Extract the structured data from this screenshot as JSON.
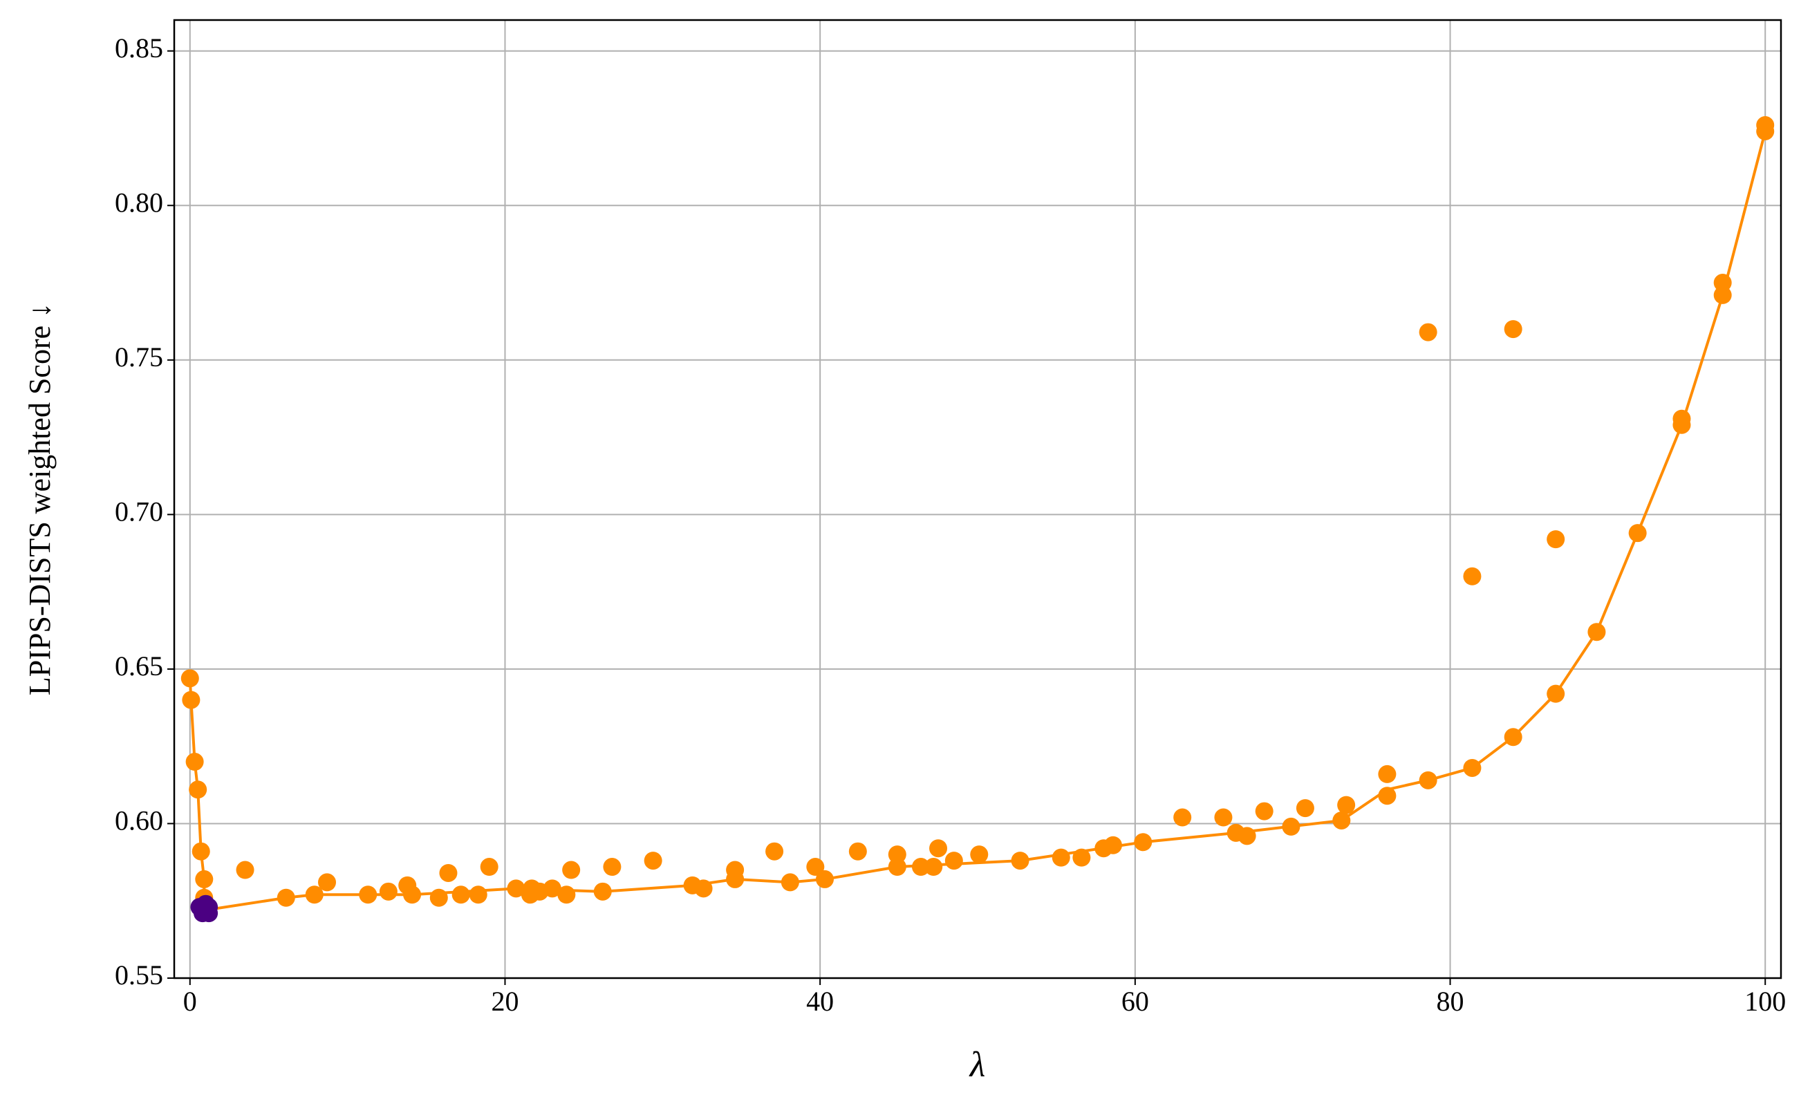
{
  "chart_data": {
    "type": "scatter",
    "xlabel": "λ",
    "ylabel": "LPIPS-DISTS weighted Score ↓",
    "xlim": [
      -1,
      101
    ],
    "ylim": [
      0.55,
      0.86
    ],
    "xticks": [
      0,
      20,
      40,
      60,
      80,
      100
    ],
    "yticks": [
      0.55,
      {
        "value": 0.6,
        "label": "0.60"
      },
      0.65,
      {
        "value": 0.7,
        "label": "0.70"
      },
      0.75,
      {
        "value": 0.8,
        "label": "0.80"
      },
      0.85
    ],
    "grid": true,
    "series": [
      {
        "type": "line",
        "color": "#ff8c00",
        "x": [
          0,
          0.07,
          0.3,
          0.5,
          0.7,
          0.9,
          0.9,
          1.0,
          6.1,
          7.9,
          11.3,
          14.1,
          20.7,
          26.2,
          31.9,
          34.6,
          38.1,
          40.3,
          44.9,
          52.7,
          60.5,
          66.4,
          73.1,
          76.0,
          78.6,
          81.4,
          84.0,
          86.7,
          89.3,
          91.9,
          94.7,
          97.3,
          100
        ],
        "values": [
          0.647,
          0.64,
          0.62,
          0.611,
          0.591,
          0.582,
          0.576,
          0.572,
          0.576,
          0.577,
          0.577,
          0.577,
          0.579,
          0.578,
          0.58,
          0.582,
          0.581,
          0.582,
          0.586,
          0.588,
          0.594,
          0.597,
          0.601,
          0.611,
          0.614,
          0.618,
          0.628,
          0.642,
          0.662,
          0.694,
          0.729,
          0.771,
          0.824
        ]
      },
      {
        "type": "scatter",
        "color": "#ff8c00",
        "x": [
          0,
          0.07,
          0.3,
          0.5,
          0.7,
          0.9,
          0.9,
          3.5,
          6.1,
          7.9,
          8.7,
          11.3,
          12.6,
          13.8,
          14.1,
          15.8,
          16.4,
          17.2,
          18.3,
          19.0,
          20.7,
          21.6,
          21.7,
          22.2,
          23.0,
          23.9,
          24.2,
          26.2,
          26.8,
          29.4,
          31.9,
          32.6,
          34.6,
          34.6,
          37.1,
          38.1,
          39.7,
          40.3,
          42.4,
          44.9,
          44.9,
          46.4,
          47.2,
          47.5,
          48.5,
          50.1,
          52.7,
          55.3,
          56.6,
          58.0,
          58.6,
          60.5,
          63.0,
          65.6,
          66.4,
          67.1,
          68.2,
          69.9,
          70.8,
          73.1,
          73.4,
          76.0,
          76.0,
          78.6,
          78.6,
          81.4,
          81.4,
          84.0,
          84.0,
          86.7,
          86.7,
          89.3,
          91.9,
          94.7,
          94.7,
          97.3,
          97.3,
          100,
          100
        ],
        "values": [
          0.647,
          0.64,
          0.62,
          0.611,
          0.591,
          0.582,
          0.576,
          0.585,
          0.576,
          0.577,
          0.581,
          0.577,
          0.578,
          0.58,
          0.577,
          0.576,
          0.584,
          0.577,
          0.577,
          0.586,
          0.579,
          0.577,
          0.579,
          0.578,
          0.579,
          0.577,
          0.585,
          0.578,
          0.586,
          0.588,
          0.58,
          0.579,
          0.585,
          0.582,
          0.591,
          0.581,
          0.586,
          0.582,
          0.591,
          0.59,
          0.586,
          0.586,
          0.586,
          0.592,
          0.588,
          0.59,
          0.588,
          0.589,
          0.589,
          0.592,
          0.593,
          0.594,
          0.602,
          0.602,
          0.597,
          0.596,
          0.604,
          0.599,
          0.605,
          0.601,
          0.606,
          0.616,
          0.609,
          0.614,
          0.759,
          0.618,
          0.68,
          0.628,
          0.76,
          0.642,
          0.692,
          0.662,
          0.694,
          0.729,
          0.731,
          0.771,
          0.775,
          0.824,
          0.826
        ]
      },
      {
        "type": "scatter",
        "color": "#4b0082",
        "x": [
          0.6,
          0.8,
          1.2,
          1.2,
          1.0
        ],
        "values": [
          0.573,
          0.571,
          0.571,
          0.573,
          0.574
        ]
      }
    ]
  }
}
